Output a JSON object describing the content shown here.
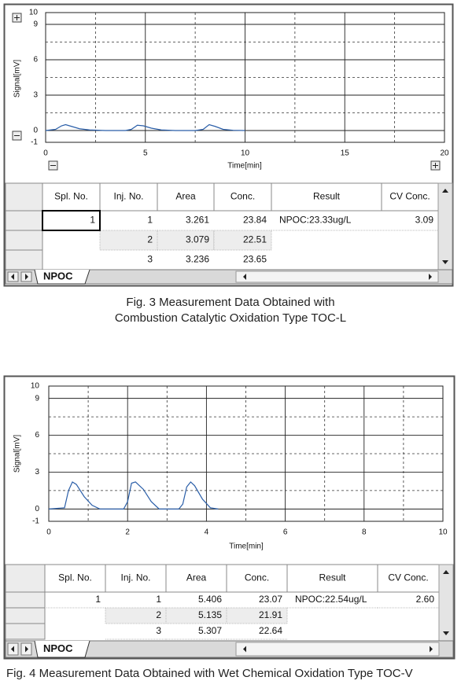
{
  "chart_data": [
    {
      "type": "line",
      "y_label": "Signal[mV]",
      "x_label": "Time[min]",
      "xlim": [
        0,
        20
      ],
      "ylim": [
        -1,
        10
      ],
      "xticks": [
        0,
        5,
        10,
        15,
        20
      ],
      "yticks": [
        10,
        9,
        6,
        3,
        0,
        -1
      ],
      "minor_xticks": [
        2.5,
        7.5,
        12.5,
        17.5
      ],
      "minor_yticks": [
        7.5,
        4.5,
        1.5
      ],
      "grid": true,
      "series": [
        {
          "color": "#2a5ea8",
          "x": [
            0,
            0.5,
            0.8,
            1.0,
            1.3,
            1.7,
            2.2,
            3.0,
            4.0,
            4.3,
            4.6,
            4.9,
            5.3,
            5.8,
            6.5,
            7.5,
            7.9,
            8.2,
            8.5,
            8.9,
            9.4,
            10.0
          ],
          "values": [
            0,
            0.1,
            0.4,
            0.5,
            0.35,
            0.15,
            0.05,
            0,
            0,
            0.1,
            0.45,
            0.4,
            0.2,
            0.05,
            0,
            0,
            0.1,
            0.5,
            0.35,
            0.1,
            0.02,
            0
          ]
        }
      ]
    },
    {
      "type": "line",
      "y_label": "Signal[mV]",
      "x_label": "Time[min]",
      "xlim": [
        0,
        10
      ],
      "ylim": [
        -1,
        10
      ],
      "xticks": [
        0,
        2,
        4,
        6,
        8,
        10
      ],
      "yticks": [
        10,
        9,
        6,
        3,
        0,
        -1
      ],
      "minor_xticks": [
        1,
        3,
        5,
        7,
        9
      ],
      "minor_yticks": [
        7.5,
        4.5,
        1.5
      ],
      "grid": true,
      "series": [
        {
          "color": "#2a5ea8",
          "x": [
            0,
            0.4,
            0.5,
            0.6,
            0.7,
            0.9,
            1.1,
            1.3,
            1.9,
            2.0,
            2.1,
            2.2,
            2.4,
            2.6,
            2.8,
            3.3,
            3.4,
            3.5,
            3.6,
            3.7,
            3.9,
            4.1,
            4.3
          ],
          "values": [
            0,
            0.1,
            1.5,
            2.2,
            2.0,
            1.0,
            0.3,
            0,
            0,
            0.6,
            2.1,
            2.2,
            1.6,
            0.6,
            0,
            0,
            0.4,
            1.8,
            2.2,
            1.9,
            0.8,
            0.1,
            0
          ]
        }
      ]
    }
  ],
  "figures": [
    {
      "table": {
        "headers": [
          "Spl. No.",
          "Inj. No.",
          "Area",
          "Conc.",
          "Result",
          "CV Conc."
        ],
        "rows": [
          [
            "1",
            "1",
            "3.261",
            "23.84",
            "NPOC:23.33ug/L",
            "3.09"
          ],
          [
            null,
            "2",
            "3.079",
            "22.51",
            null,
            null
          ],
          [
            null,
            "3",
            "3.236",
            "23.65",
            null,
            null
          ]
        ]
      },
      "tab": "NPOC",
      "caption": [
        "Fig. 3  Measurement Data Obtained with",
        "Combustion Catalytic Oxidation Type TOC-L"
      ]
    },
    {
      "table": {
        "headers": [
          "Spl. No.",
          "Inj. No.",
          "Area",
          "Conc.",
          "Result",
          "CV Conc."
        ],
        "rows": [
          [
            "1",
            "1",
            "5.406",
            "23.07",
            "NPOC:22.54ug/L",
            "2.60"
          ],
          [
            null,
            "2",
            "5.135",
            "21.91",
            null,
            null
          ],
          [
            null,
            "3",
            "5.307",
            "22.64",
            null,
            null
          ]
        ]
      },
      "tab": "NPOC",
      "caption": [
        "Fig. 4  Measurement Data Obtained with Wet Chemical Oxidation Type TOC-V"
      ]
    }
  ]
}
